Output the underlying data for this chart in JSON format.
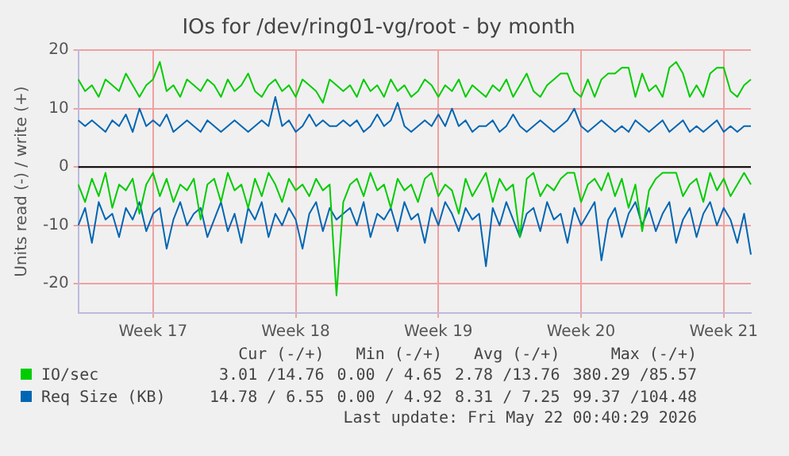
{
  "chart_data": {
    "type": "line",
    "title": "IOs for /dev/ring01-vg/root - by month",
    "ylabel": "Units read (-) / write (+)",
    "categories": [
      null,
      null,
      null,
      null,
      null,
      null,
      null,
      null,
      null,
      null,
      null,
      "Week 17",
      null,
      null,
      null,
      null,
      null,
      null,
      null,
      null,
      null,
      null,
      null,
      null,
      null,
      null,
      null,
      null,
      null,
      null,
      null,
      null,
      "Week 18",
      null,
      null,
      null,
      null,
      null,
      null,
      null,
      null,
      null,
      null,
      null,
      null,
      null,
      null,
      null,
      null,
      null,
      null,
      null,
      null,
      "Week 19",
      null,
      null,
      null,
      null,
      null,
      null,
      null,
      null,
      null,
      null,
      null,
      null,
      null,
      null,
      null,
      null,
      null,
      null,
      null,
      null,
      "Week 20",
      null,
      null,
      null,
      null,
      null,
      null,
      null,
      null,
      null,
      null,
      null,
      null,
      null,
      null,
      null,
      null,
      null,
      null,
      null,
      null,
      "Week 21",
      null,
      null,
      null,
      null
    ],
    "series": [
      {
        "name": "IO/sec",
        "color": "#00cc00",
        "values": [
          15,
          13,
          14,
          12,
          15,
          14,
          13,
          16,
          14,
          12,
          14,
          15,
          18,
          13,
          14,
          12,
          15,
          14,
          13,
          15,
          14,
          12,
          15,
          13,
          14,
          16,
          13,
          12,
          14,
          15,
          13,
          14,
          12,
          15,
          14,
          13,
          11,
          15,
          14,
          13,
          14,
          12,
          15,
          13,
          14,
          12,
          15,
          13,
          14,
          12,
          13,
          15,
          14,
          12,
          14,
          13,
          15,
          12,
          14,
          13,
          12,
          14,
          13,
          15,
          12,
          14,
          16,
          13,
          12,
          14,
          15,
          16,
          16,
          13,
          12,
          15,
          12,
          15,
          16,
          16,
          17,
          17,
          12,
          16,
          13,
          14,
          12,
          17,
          18,
          16,
          12,
          14,
          12,
          16,
          17,
          17,
          13,
          12,
          14,
          15
        ]
      },
      {
        "color": "#00cc00",
        "values": [
          -3,
          -6,
          -2,
          -5,
          -1,
          -7,
          -3,
          -4,
          -2,
          -8,
          -3,
          -1,
          -5,
          -2,
          -6,
          -3,
          -4,
          -2,
          -9,
          -3,
          -2,
          -6,
          -1,
          -4,
          -3,
          -7,
          -2,
          -5,
          -1,
          -3,
          -6,
          -2,
          -4,
          -3,
          -5,
          -2,
          -4,
          -3,
          -22,
          -6,
          -3,
          -2,
          -5,
          -1,
          -4,
          -3,
          -7,
          -2,
          -4,
          -3,
          -6,
          -2,
          -1,
          -5,
          -3,
          -4,
          -8,
          -2,
          -5,
          -3,
          -1,
          -6,
          -2,
          -4,
          -3,
          -12,
          -2,
          -1,
          -5,
          -3,
          -4,
          -2,
          -1,
          -1,
          -6,
          -3,
          -2,
          -4,
          -1,
          -5,
          -2,
          -7,
          -3,
          -11,
          -4,
          -2,
          -1,
          -1,
          -1,
          -5,
          -3,
          -2,
          -6,
          -1,
          -4,
          -2,
          -5,
          -3,
          -1,
          -3
        ]
      },
      {
        "name": "Req Size (KB)",
        "color": "#0066b3",
        "values": [
          8,
          7,
          8,
          7,
          6,
          8,
          7,
          9,
          6,
          10,
          7,
          8,
          7,
          9,
          6,
          7,
          8,
          7,
          6,
          8,
          7,
          6,
          7,
          8,
          7,
          6,
          7,
          8,
          7,
          12,
          7,
          8,
          6,
          7,
          9,
          7,
          8,
          7,
          7,
          8,
          7,
          8,
          6,
          7,
          9,
          7,
          8,
          11,
          7,
          6,
          7,
          8,
          7,
          9,
          7,
          10,
          7,
          8,
          6,
          7,
          7,
          8,
          6,
          7,
          9,
          7,
          6,
          7,
          8,
          7,
          6,
          7,
          8,
          10,
          7,
          6,
          7,
          8,
          7,
          6,
          7,
          6,
          8,
          7,
          6,
          7,
          8,
          6,
          7,
          8,
          6,
          7,
          6,
          7,
          8,
          6,
          7,
          6,
          7,
          7
        ]
      },
      {
        "color": "#0066b3",
        "values": [
          -10,
          -7,
          -13,
          -6,
          -9,
          -8,
          -12,
          -7,
          -9,
          -6,
          -11,
          -8,
          -7,
          -14,
          -9,
          -6,
          -10,
          -8,
          -7,
          -12,
          -9,
          -6,
          -11,
          -8,
          -13,
          -7,
          -9,
          -6,
          -12,
          -8,
          -10,
          -7,
          -9,
          -14,
          -8,
          -6,
          -11,
          -7,
          -9,
          -8,
          -7,
          -10,
          -6,
          -12,
          -8,
          -9,
          -7,
          -11,
          -6,
          -9,
          -8,
          -13,
          -7,
          -10,
          -6,
          -8,
          -11,
          -7,
          -9,
          -8,
          -17,
          -7,
          -10,
          -6,
          -9,
          -12,
          -8,
          -7,
          -11,
          -6,
          -9,
          -8,
          -13,
          -7,
          -10,
          -8,
          -6,
          -16,
          -9,
          -7,
          -12,
          -8,
          -6,
          -10,
          -7,
          -11,
          -8,
          -6,
          -13,
          -9,
          -7,
          -12,
          -8,
          -6,
          -10,
          -7,
          -9,
          -13,
          -8,
          -15
        ]
      }
    ],
    "ylim": [
      -25,
      20
    ],
    "yticks": [
      -20,
      -10,
      0,
      10,
      20
    ],
    "grid": true,
    "legend": "bottom",
    "marker": "none",
    "line_style": "solid",
    "ref_lines": [
      {
        "axis": "y",
        "value": 0,
        "color": "#000000"
      }
    ],
    "annotations": [
      "Cur (-/+)",
      "Min (-/+)",
      "Avg (-/+)",
      "Max (-/+)",
      "3.01 /14.76",
      "0.00 / 4.65",
      "2.78 /13.76",
      "380.29 /85.57",
      "14.78 / 6.55",
      "0.00 / 4.92",
      "8.31 / 7.25",
      "99.37 /104.48",
      "Last update: Fri May 22 00:40:29 2026"
    ]
  }
}
